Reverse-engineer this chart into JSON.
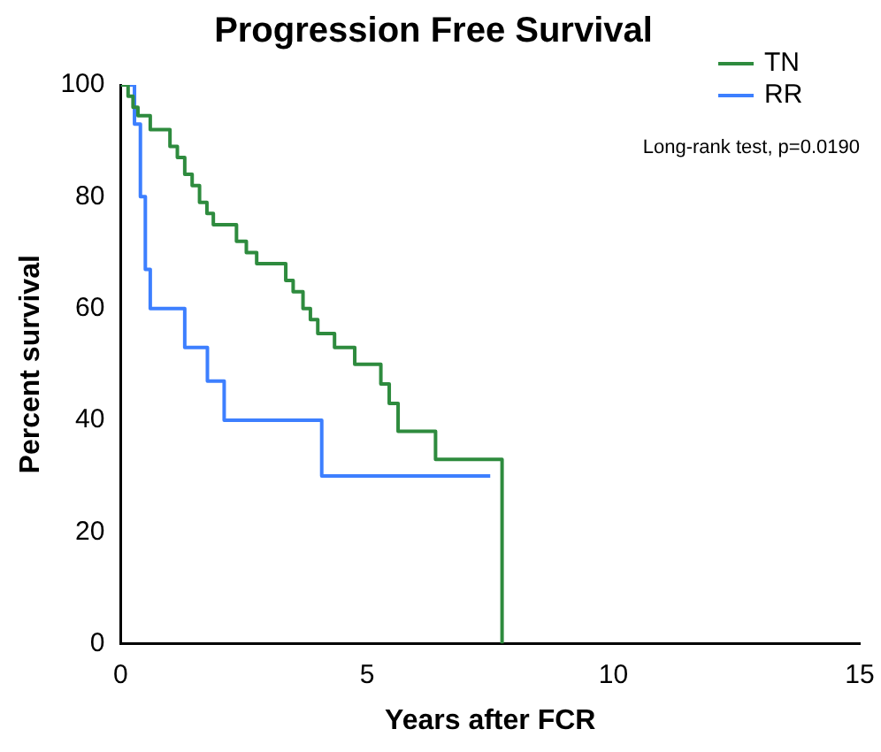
{
  "chart_data": {
    "type": "step",
    "title": "Progression Free Survival",
    "xlabel": "Years after FCR",
    "ylabel": "Percent survival",
    "xlim": [
      0,
      15
    ],
    "xticks": [
      0,
      5,
      10,
      15
    ],
    "ylim": [
      0,
      100
    ],
    "yticks": [
      0,
      20,
      40,
      60,
      80,
      100
    ],
    "grid": false,
    "legend": "top right",
    "annotations": [
      "Long-rank test, p=0.0190"
    ],
    "series": [
      {
        "name": "TN",
        "color": "#2e8b3e",
        "x": [
          0,
          0.15,
          0.25,
          0.35,
          0.6,
          1.0,
          1.15,
          1.3,
          1.45,
          1.6,
          1.75,
          1.88,
          2.35,
          2.55,
          2.76,
          3.35,
          3.5,
          3.7,
          3.85,
          4.0,
          4.34,
          4.75,
          5.28,
          5.45,
          5.63,
          6.39,
          7.74
        ],
        "values": [
          100,
          98,
          96,
          94.5,
          92,
          89,
          87,
          84,
          82,
          79,
          77,
          75,
          72,
          70,
          68,
          65,
          63,
          60,
          58,
          55.5,
          53,
          50,
          46.5,
          43,
          38,
          33,
          0
        ]
      },
      {
        "name": "RR",
        "color": "#3d7fff",
        "x": [
          0,
          0.28,
          0.4,
          0.5,
          0.6,
          1.3,
          1.76,
          2.1,
          4.08,
          7.5
        ],
        "values": [
          100,
          93,
          80,
          67,
          60,
          53,
          47,
          40,
          30,
          30
        ]
      }
    ]
  }
}
